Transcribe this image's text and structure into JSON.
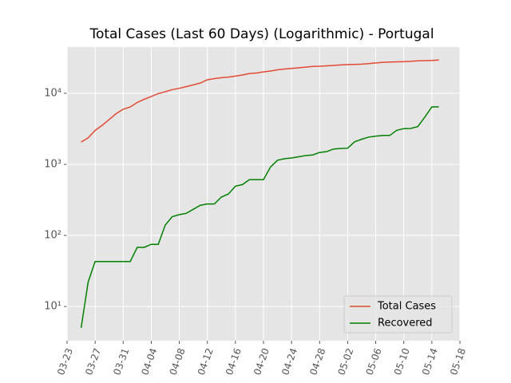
{
  "chart_data": {
    "type": "line",
    "title": "Total Cases (Last 60 Days) (Logarithmic) - Portugal",
    "x": [
      "03-25",
      "03-26",
      "03-27",
      "03-28",
      "03-29",
      "03-30",
      "03-31",
      "04-01",
      "04-02",
      "04-03",
      "04-04",
      "04-05",
      "04-06",
      "04-07",
      "04-08",
      "04-09",
      "04-10",
      "04-11",
      "04-12",
      "04-13",
      "04-14",
      "04-15",
      "04-16",
      "04-17",
      "04-18",
      "04-19",
      "04-20",
      "04-21",
      "04-22",
      "04-23",
      "04-24",
      "04-25",
      "04-26",
      "04-27",
      "04-28",
      "04-29",
      "04-30",
      "05-01",
      "05-02",
      "05-03",
      "05-04",
      "05-05",
      "05-06",
      "05-07",
      "05-08",
      "05-09",
      "05-10",
      "05-11",
      "05-12",
      "05-13",
      "05-14",
      "05-15"
    ],
    "series": [
      {
        "name": "Total Cases",
        "color": "#e24a33",
        "values": [
          2060,
          2360,
          3000,
          3540,
          4270,
          5170,
          5960,
          6410,
          7440,
          8250,
          9030,
          9890,
          10520,
          11280,
          11730,
          12440,
          13140,
          13960,
          15470,
          16090,
          16580,
          16930,
          17450,
          18090,
          19020,
          19290,
          20000,
          20580,
          21380,
          21980,
          22350,
          22800,
          23390,
          23860,
          24030,
          24320,
          24690,
          25050,
          25350,
          25520,
          25700,
          26180,
          26720,
          27270,
          27580,
          27680,
          27910,
          28130,
          28580,
          28810,
          29040,
          29430
        ]
      },
      {
        "name": "Recovered",
        "color": "#008000",
        "values": [
          5,
          22,
          43,
          43,
          43,
          43,
          43,
          43,
          68,
          68,
          75,
          75,
          140,
          184,
          196,
          205,
          233,
          266,
          277,
          277,
          347,
          383,
          493,
          519,
          610,
          610,
          610,
          917,
          1143,
          1201,
          1228,
          1277,
          1329,
          1357,
          1470,
          1512,
          1647,
          1671,
          1689,
          2076,
          2258,
          2422,
          2499,
          2549,
          2549,
          3013,
          3182,
          3198,
          3400,
          4636,
          6430,
          6452
        ]
      }
    ],
    "xlim": [
      "03-23",
      "05-18"
    ],
    "xticks": [
      "03-23",
      "03-27",
      "03-31",
      "04-04",
      "04-08",
      "04-12",
      "04-16",
      "04-20",
      "04-24",
      "04-28",
      "05-02",
      "05-06",
      "05-10",
      "05-14",
      "05-18"
    ],
    "ylim": [
      3.3,
      44700
    ],
    "log_y": true,
    "yticks": [
      {
        "value": 10,
        "label": "10¹"
      },
      {
        "value": 100,
        "label": "10²"
      },
      {
        "value": 1000,
        "label": "10³"
      },
      {
        "value": 10000,
        "label": "10⁴"
      }
    ],
    "grid": true,
    "legend": "lower right"
  }
}
